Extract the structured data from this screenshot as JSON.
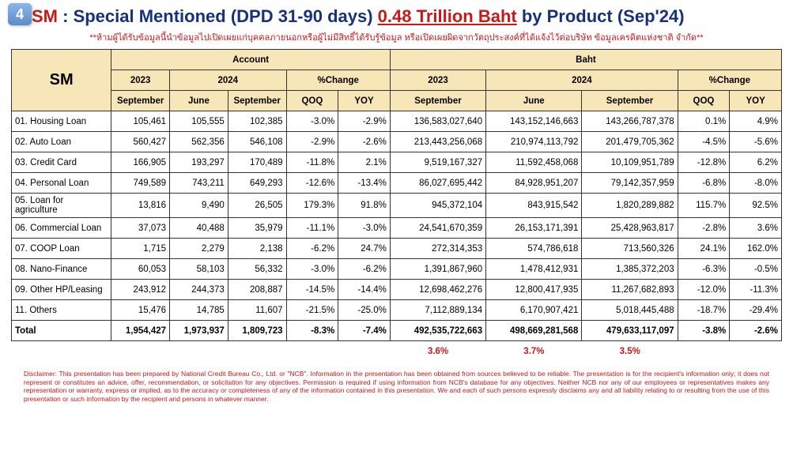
{
  "slide_number": "4",
  "title": {
    "prefix_red": "SM",
    "colon": " : ",
    "mid_blue": "Special Mentioned (DPD 31-90 days) ",
    "amount_red_underline": "0.48 Trillion Baht",
    "suffix_blue": " by Product (Sep'24)"
  },
  "warning_line": "**ห้ามผู้ได้รับข้อมูลนี้นำข้อมูลไปเปิดเผยแก่บุคคลภายนอกหรือผู้ไม่มีสิทธิ์ได้รับรู้ข้อมูล หรือเปิดเผยผิดจากวัตถุประสงค์ที่ได้แจ้งไว้ต่อบริษัท ข้อมูลเครดิตแห่งชาติ จำกัด**",
  "headers": {
    "sm": "SM",
    "account": "Account",
    "baht": "Baht",
    "y2023": "2023",
    "y2024": "2024",
    "pct_change": "%Change",
    "september": "September",
    "june": "June",
    "qoq": "QOQ",
    "yoy": "YOY"
  },
  "rows": [
    {
      "label": "01. Housing Loan",
      "a23": "105,461",
      "a24j": "105,555",
      "a24s": "102,385",
      "aq": "-3.0%",
      "ay": "-2.9%",
      "b23": "136,583,027,640",
      "b24j": "143,152,146,663",
      "b24s": "143,266,787,378",
      "bq": "0.1%",
      "by": "4.9%"
    },
    {
      "label": "02. Auto Loan",
      "a23": "560,427",
      "a24j": "562,356",
      "a24s": "546,108",
      "aq": "-2.9%",
      "ay": "-2.6%",
      "b23": "213,443,256,068",
      "b24j": "210,974,113,792",
      "b24s": "201,479,705,362",
      "bq": "-4.5%",
      "by": "-5.6%"
    },
    {
      "label": "03. Credit Card",
      "a23": "166,905",
      "a24j": "193,297",
      "a24s": "170,489",
      "aq": "-11.8%",
      "ay": "2.1%",
      "b23": "9,519,167,327",
      "b24j": "11,592,458,068",
      "b24s": "10,109,951,789",
      "bq": "-12.8%",
      "by": "6.2%"
    },
    {
      "label": "04. Personal Loan",
      "a23": "749,589",
      "a24j": "743,211",
      "a24s": "649,293",
      "aq": "-12.6%",
      "ay": "-13.4%",
      "b23": "86,027,695,442",
      "b24j": "84,928,951,207",
      "b24s": "79,142,357,959",
      "bq": "-6.8%",
      "by": "-8.0%"
    },
    {
      "label": "05. Loan for agriculture",
      "a23": "13,816",
      "a24j": "9,490",
      "a24s": "26,505",
      "aq": "179.3%",
      "ay": "91.8%",
      "b23": "945,372,104",
      "b24j": "843,915,542",
      "b24s": "1,820,289,882",
      "bq": "115.7%",
      "by": "92.5%"
    },
    {
      "label": "06. Commercial Loan",
      "a23": "37,073",
      "a24j": "40,488",
      "a24s": "35,979",
      "aq": "-11.1%",
      "ay": "-3.0%",
      "b23": "24,541,670,359",
      "b24j": "26,153,171,391",
      "b24s": "25,428,963,817",
      "bq": "-2.8%",
      "by": "3.6%"
    },
    {
      "label": "07. COOP Loan",
      "a23": "1,715",
      "a24j": "2,279",
      "a24s": "2,138",
      "aq": "-6.2%",
      "ay": "24.7%",
      "b23": "272,314,353",
      "b24j": "574,786,618",
      "b24s": "713,560,326",
      "bq": "24.1%",
      "by": "162.0%"
    },
    {
      "label": "08. Nano-Finance",
      "a23": "60,053",
      "a24j": "58,103",
      "a24s": "56,332",
      "aq": "-3.0%",
      "ay": "-6.2%",
      "b23": "1,391,867,960",
      "b24j": "1,478,412,931",
      "b24s": "1,385,372,203",
      "bq": "-6.3%",
      "by": "-0.5%"
    },
    {
      "label": "09. Other HP/Leasing",
      "a23": "243,912",
      "a24j": "244,373",
      "a24s": "208,887",
      "aq": "-14.5%",
      "ay": "-14.4%",
      "b23": "12,698,462,276",
      "b24j": "12,800,417,935",
      "b24s": "11,267,682,893",
      "bq": "-12.0%",
      "by": "-11.3%"
    },
    {
      "label": "11. Others",
      "a23": "15,476",
      "a24j": "14,785",
      "a24s": "11,607",
      "aq": "-21.5%",
      "ay": "-25.0%",
      "b23": "7,112,889,134",
      "b24j": "6,170,907,421",
      "b24s": "5,018,445,488",
      "bq": "-18.7%",
      "by": "-29.4%"
    }
  ],
  "total": {
    "label": "Total",
    "a23": "1,954,427",
    "a24j": "1,973,937",
    "a24s": "1,809,723",
    "aq": "-8.3%",
    "ay": "-7.4%",
    "b23": "492,535,722,663",
    "b24j": "498,669,281,568",
    "b24s": "479,633,117,097",
    "bq": "-3.8%",
    "by": "-2.6%"
  },
  "ratios": {
    "r23": "3.6%",
    "r24j": "3.7%",
    "r24s": "3.5%"
  },
  "disclaimer": "Disclaimer: This presentation has been prepared by National Credit Bureau Co., Ltd. or \"NCB\". Information in the presentation has been obtained from sources believed to be reliable. The presentation is for the recipient's information only; it does not represent or constitutes an advice, offer, recommendation, or solicitation for any objectives. Permission is required if using information from NCB's database for any objectives. Neither NCB nor any of our employees or representatives makes any representation or warranty, express or implied, as to the accuracy or completeness of any of the information contained in this presentation. We and each of such persons expressly disclaims any and all liability relating to or resulting from the use of this presentation or such information by the recipient and persons in whatever manner.",
  "colors": {
    "header_bg": "#f7e6b8",
    "red": "#c81818",
    "blue": "#15327a",
    "border": "#333333"
  }
}
